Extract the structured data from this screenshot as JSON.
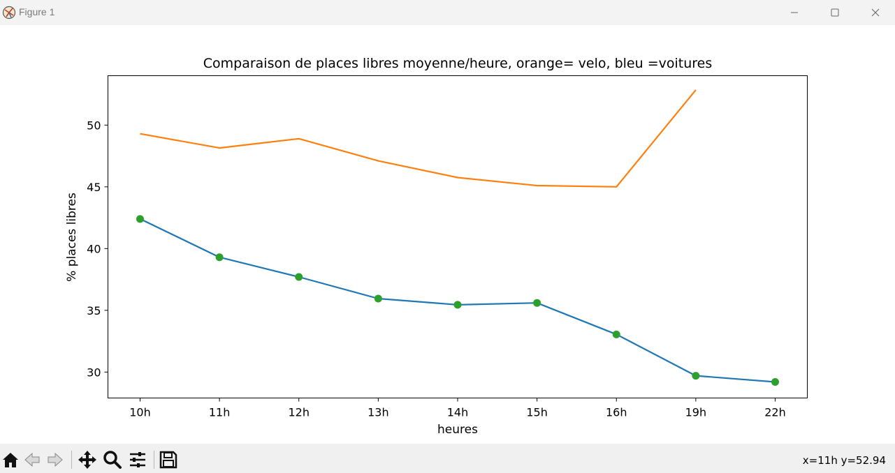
{
  "window": {
    "title": "Figure 1",
    "icons": {
      "app": "matplotlib-figure-icon",
      "minimize": "minimize-icon",
      "maximize": "maximize-icon",
      "close": "close-icon"
    }
  },
  "toolbar": {
    "buttons": [
      "home-icon",
      "back-arrow-icon",
      "forward-arrow-icon",
      "pan-move-icon",
      "zoom-magnifier-icon",
      "configure-subplots-icon",
      "save-icon"
    ],
    "coordinates": "x=11h y=52.94"
  },
  "chart_data": {
    "type": "line",
    "title": "Comparaison de places libres moyenne/heure, orange= velo, bleu =voitures",
    "xlabel": "heures",
    "ylabel": "% places libres",
    "categories": [
      "10h",
      "11h",
      "12h",
      "13h",
      "14h",
      "15h",
      "16h",
      "19h",
      "22h"
    ],
    "ylim": [
      27.9,
      54.0
    ],
    "yticks": [
      30,
      35,
      40,
      45,
      50
    ],
    "grid": false,
    "series": [
      {
        "color": "#ff7f0e",
        "marker": "none",
        "values": [
          49.3,
          48.15,
          48.9,
          47.1,
          45.75,
          45.1,
          45.0,
          52.85,
          null
        ]
      },
      {
        "color": "#1f77b4",
        "marker": "none",
        "values": [
          42.4,
          39.3,
          37.7,
          35.95,
          35.45,
          35.6,
          33.05,
          29.7,
          29.2
        ]
      },
      {
        "color": "#2ca02c",
        "marker": "circle",
        "values": [
          42.4,
          39.3,
          37.7,
          35.95,
          35.45,
          35.6,
          33.05,
          29.7,
          29.2
        ]
      }
    ]
  }
}
